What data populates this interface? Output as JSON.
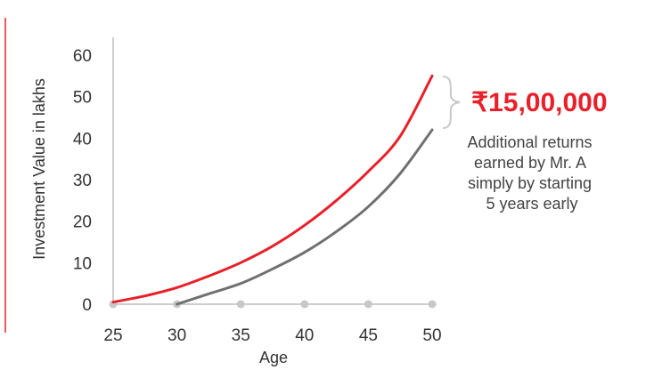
{
  "chart_data": {
    "type": "line",
    "xlabel": "Age",
    "ylabel": "Investment Value in lakhs",
    "xlim": [
      25,
      50
    ],
    "ylim": [
      0,
      60
    ],
    "x_ticks": [
      "25",
      "30",
      "35",
      "40",
      "45",
      "50"
    ],
    "y_ticks": [
      "0",
      "10",
      "20",
      "30",
      "40",
      "50",
      "60"
    ],
    "series": [
      {
        "color": "#e8202a",
        "x": [
          25,
          27.5,
          30,
          32.5,
          35,
          37.5,
          40,
          42.5,
          45,
          47.5,
          50
        ],
        "y": [
          0.5,
          2,
          4,
          6.8,
          10,
          14,
          19,
          25,
          32,
          40.5,
          55
        ]
      },
      {
        "color": "#707070",
        "x": [
          30,
          32.5,
          35,
          37.5,
          40,
          42.5,
          45,
          47.5,
          50
        ],
        "y": [
          0,
          2.5,
          5,
          8.5,
          12.5,
          17.5,
          23.5,
          31.5,
          42
        ]
      }
    ],
    "grid": false,
    "accent_line_color": "#e8202a"
  },
  "annotation": {
    "highlight_value": "₹15,00,000",
    "highlight_color": "#e8202a",
    "note_lines": [
      "Additional returns",
      "earned by Mr. A",
      "simply by starting",
      "5 years early"
    ]
  }
}
